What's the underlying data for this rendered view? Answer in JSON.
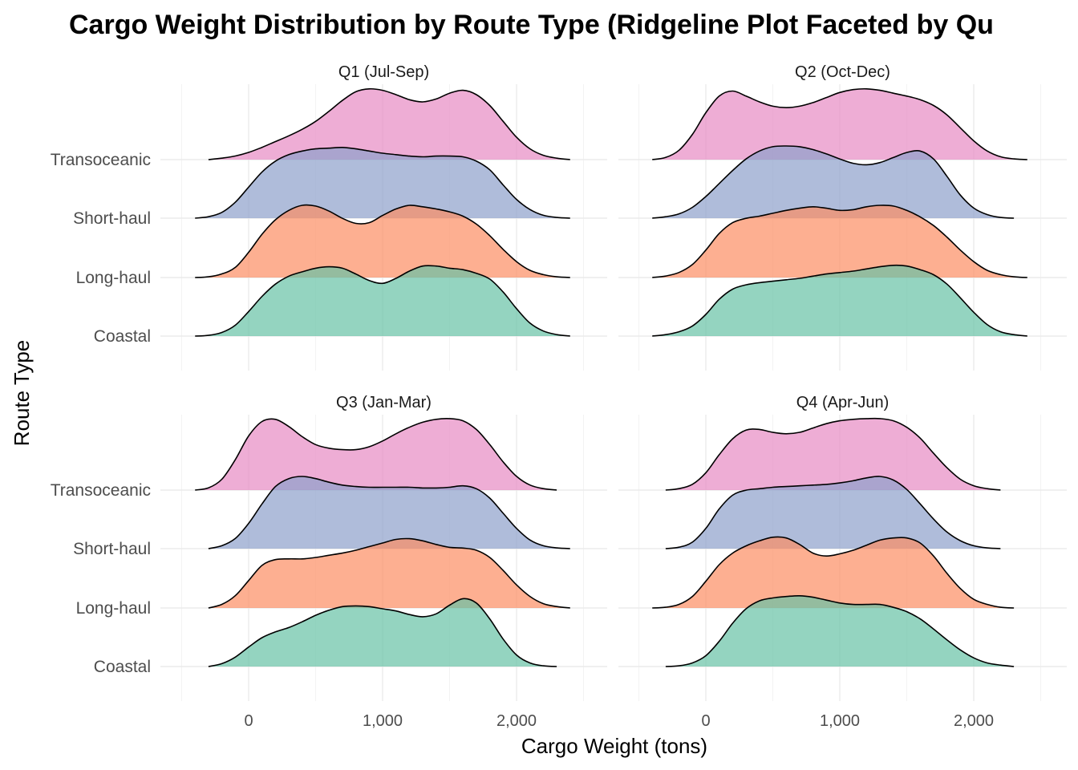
{
  "chart_data": {
    "type": "ridgeline",
    "title": "Cargo Weight Distribution by Route Type (Ridgeline Plot Faceted by Qu",
    "xlabel": "Cargo Weight (tons)",
    "ylabel": "Route Type",
    "xlim": [
      -500,
      2500
    ],
    "x_ticks": [
      0,
      1000,
      2000
    ],
    "x_tick_labels": [
      "0",
      "1,000",
      "2,000"
    ],
    "categories": [
      "Coastal",
      "Long-haul",
      "Short-haul",
      "Transoceanic"
    ],
    "colors": {
      "Coastal": "#66c2a5",
      "Long-haul": "#fc8d62",
      "Short-haul": "#8da0cb",
      "Transoceanic": "#e78ac3"
    },
    "grid": true,
    "legend": "none",
    "density_x": [
      -400,
      -300,
      -200,
      -100,
      0,
      100,
      200,
      300,
      400,
      500,
      600,
      700,
      800,
      900,
      1000,
      1100,
      1200,
      1300,
      1400,
      1500,
      1600,
      1700,
      1800,
      1900,
      2000,
      2100,
      2200,
      2300,
      2400
    ],
    "facets": [
      {
        "label": "Q1 (Jul-Sep)",
        "series": [
          {
            "name": "Coastal",
            "values": [
              0.0,
              0.01,
              0.05,
              0.15,
              0.34,
              0.55,
              0.72,
              0.83,
              0.89,
              0.94,
              0.96,
              0.94,
              0.86,
              0.77,
              0.73,
              0.8,
              0.9,
              0.97,
              0.97,
              0.94,
              0.92,
              0.87,
              0.79,
              0.61,
              0.38,
              0.18,
              0.07,
              0.02,
              0.0
            ]
          },
          {
            "name": "Long-haul",
            "values": [
              0.0,
              0.01,
              0.05,
              0.14,
              0.35,
              0.6,
              0.8,
              0.93,
              1.0,
              0.99,
              0.92,
              0.82,
              0.75,
              0.76,
              0.86,
              0.95,
              1.0,
              0.98,
              0.95,
              0.91,
              0.85,
              0.74,
              0.58,
              0.39,
              0.22,
              0.1,
              0.04,
              0.01,
              0.0
            ]
          },
          {
            "name": "Short-haul",
            "values": [
              0.0,
              0.02,
              0.08,
              0.22,
              0.43,
              0.64,
              0.79,
              0.88,
              0.93,
              0.96,
              0.97,
              0.98,
              0.96,
              0.93,
              0.9,
              0.88,
              0.86,
              0.85,
              0.86,
              0.86,
              0.85,
              0.79,
              0.67,
              0.46,
              0.26,
              0.12,
              0.04,
              0.01,
              0.0
            ]
          },
          {
            "name": "Transoceanic",
            "values": [
              null,
              0.0,
              0.02,
              0.05,
              0.1,
              0.17,
              0.25,
              0.33,
              0.42,
              0.53,
              0.67,
              0.82,
              0.94,
              0.98,
              0.96,
              0.9,
              0.83,
              0.8,
              0.84,
              0.92,
              0.96,
              0.9,
              0.75,
              0.53,
              0.31,
              0.15,
              0.06,
              0.02,
              0.0
            ]
          }
        ]
      },
      {
        "label": "Q2 (Oct-Dec)",
        "series": [
          {
            "name": "Coastal",
            "values": [
              0.0,
              0.02,
              0.06,
              0.14,
              0.3,
              0.51,
              0.65,
              0.71,
              0.74,
              0.76,
              0.78,
              0.8,
              0.83,
              0.86,
              0.88,
              0.9,
              0.93,
              0.96,
              0.98,
              0.97,
              0.92,
              0.85,
              0.72,
              0.53,
              0.33,
              0.16,
              0.06,
              0.02,
              0.0
            ]
          },
          {
            "name": "Long-haul",
            "values": [
              0.0,
              0.02,
              0.07,
              0.18,
              0.38,
              0.61,
              0.76,
              0.82,
              0.85,
              0.89,
              0.93,
              0.96,
              0.98,
              0.96,
              0.93,
              0.94,
              0.98,
              1.0,
              0.99,
              0.93,
              0.84,
              0.72,
              0.56,
              0.38,
              0.22,
              0.1,
              0.04,
              0.01,
              0.0
            ]
          },
          {
            "name": "Short-haul",
            "values": [
              0.0,
              0.02,
              0.06,
              0.15,
              0.3,
              0.48,
              0.66,
              0.82,
              0.93,
              0.99,
              1.0,
              0.99,
              0.95,
              0.89,
              0.82,
              0.76,
              0.74,
              0.77,
              0.84,
              0.91,
              0.93,
              0.82,
              0.58,
              0.32,
              0.14,
              0.05,
              0.01,
              0.0,
              null
            ]
          },
          {
            "name": "Transoceanic",
            "values": [
              0.0,
              0.03,
              0.13,
              0.35,
              0.65,
              0.88,
              0.95,
              0.88,
              0.8,
              0.74,
              0.72,
              0.74,
              0.79,
              0.86,
              0.93,
              0.97,
              0.98,
              0.96,
              0.92,
              0.88,
              0.83,
              0.75,
              0.62,
              0.44,
              0.26,
              0.12,
              0.04,
              0.01,
              0.0
            ]
          }
        ]
      },
      {
        "label": "Q3 (Jan-Mar)",
        "series": [
          {
            "name": "Coastal",
            "values": [
              null,
              0.0,
              0.04,
              0.13,
              0.27,
              0.4,
              0.48,
              0.54,
              0.62,
              0.71,
              0.78,
              0.83,
              0.84,
              0.83,
              0.8,
              0.77,
              0.72,
              0.69,
              0.73,
              0.85,
              0.94,
              0.88,
              0.66,
              0.38,
              0.16,
              0.05,
              0.01,
              0.0,
              null
            ]
          },
          {
            "name": "Long-haul",
            "values": [
              null,
              0.0,
              0.05,
              0.17,
              0.38,
              0.59,
              0.67,
              0.68,
              0.68,
              0.7,
              0.73,
              0.76,
              0.8,
              0.85,
              0.9,
              0.95,
              0.96,
              0.93,
              0.88,
              0.84,
              0.83,
              0.8,
              0.7,
              0.52,
              0.32,
              0.16,
              0.06,
              0.02,
              0.0
            ]
          },
          {
            "name": "Short-haul",
            "values": [
              null,
              0.0,
              0.04,
              0.14,
              0.35,
              0.62,
              0.86,
              0.97,
              1.0,
              0.97,
              0.92,
              0.88,
              0.86,
              0.85,
              0.85,
              0.85,
              0.85,
              0.84,
              0.84,
              0.85,
              0.87,
              0.83,
              0.7,
              0.49,
              0.28,
              0.12,
              0.04,
              0.01,
              0.0
            ]
          },
          {
            "name": "Transoceanic",
            "values": [
              0.0,
              0.03,
              0.15,
              0.42,
              0.75,
              0.95,
              0.98,
              0.88,
              0.74,
              0.63,
              0.58,
              0.56,
              0.56,
              0.6,
              0.68,
              0.78,
              0.87,
              0.94,
              0.98,
              0.99,
              0.96,
              0.84,
              0.63,
              0.39,
              0.19,
              0.07,
              0.02,
              0.0,
              null
            ]
          }
        ]
      },
      {
        "label": "Q4 (Apr-Jun)",
        "series": [
          {
            "name": "Coastal",
            "values": [
              null,
              0.0,
              0.01,
              0.05,
              0.15,
              0.35,
              0.6,
              0.8,
              0.91,
              0.95,
              0.97,
              0.98,
              0.96,
              0.92,
              0.88,
              0.86,
              0.86,
              0.86,
              0.82,
              0.76,
              0.66,
              0.52,
              0.37,
              0.23,
              0.12,
              0.05,
              0.02,
              0.0,
              null
            ]
          },
          {
            "name": "Long-haul",
            "values": [
              0.0,
              0.01,
              0.05,
              0.16,
              0.37,
              0.6,
              0.76,
              0.86,
              0.93,
              0.98,
              0.97,
              0.88,
              0.76,
              0.72,
              0.75,
              0.8,
              0.87,
              0.94,
              0.97,
              0.97,
              0.9,
              0.72,
              0.48,
              0.27,
              0.12,
              0.05,
              0.01,
              0.0,
              null
            ]
          },
          {
            "name": "Short-haul",
            "values": [
              null,
              0.0,
              0.02,
              0.09,
              0.28,
              0.55,
              0.74,
              0.81,
              0.83,
              0.85,
              0.86,
              0.87,
              0.88,
              0.89,
              0.91,
              0.94,
              0.98,
              1.0,
              0.95,
              0.82,
              0.62,
              0.41,
              0.23,
              0.11,
              0.04,
              0.01,
              0.0,
              null,
              null
            ]
          },
          {
            "name": "Transoceanic",
            "values": [
              null,
              0.0,
              0.02,
              0.08,
              0.24,
              0.49,
              0.71,
              0.83,
              0.84,
              0.8,
              0.78,
              0.8,
              0.86,
              0.92,
              0.96,
              0.98,
              0.99,
              0.99,
              0.96,
              0.87,
              0.72,
              0.51,
              0.31,
              0.15,
              0.06,
              0.02,
              0.0,
              null,
              null
            ]
          }
        ]
      }
    ]
  }
}
